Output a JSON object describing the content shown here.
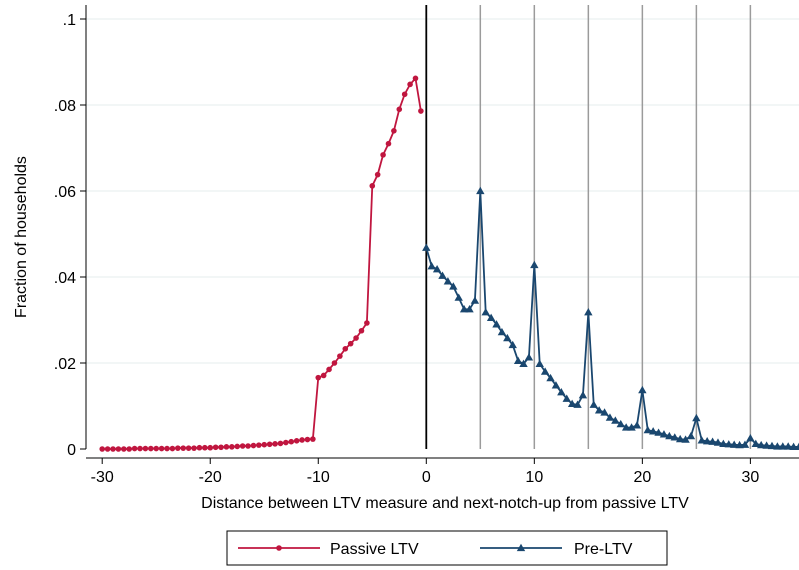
{
  "chart_data": {
    "type": "line",
    "title": "",
    "xlabel": "Distance between LTV measure and next-notch-up from passive LTV",
    "ylabel": "Fraction of households",
    "xlim": [
      -31.5,
      34.5
    ],
    "ylim": [
      0,
      0.1
    ],
    "x_ticks": [
      -30,
      -20,
      -10,
      0,
      10,
      20,
      30
    ],
    "x_tick_labels": [
      "-30",
      "-20",
      "-10",
      "0",
      "10",
      "20",
      "30"
    ],
    "y_ticks": [
      0,
      0.02,
      0.04,
      0.06,
      0.08,
      0.1
    ],
    "y_tick_labels": [
      "0",
      ".02",
      ".04",
      ".06",
      ".08",
      ".1"
    ],
    "grid": "horizontal",
    "vertical_lines": {
      "black": [
        0
      ],
      "gray": [
        5,
        10,
        15,
        20,
        25,
        30
      ]
    },
    "legend_position": "bottom",
    "series": [
      {
        "name": "Passive LTV",
        "color": "#c0163f",
        "marker": "circle",
        "x": [
          -30,
          -29.5,
          -29,
          -28.5,
          -28,
          -27.5,
          -27,
          -26.5,
          -26,
          -25.5,
          -25,
          -24.5,
          -24,
          -23.5,
          -23,
          -22.5,
          -22,
          -21.5,
          -21,
          -20.5,
          -20,
          -19.5,
          -19,
          -18.5,
          -18,
          -17.5,
          -17,
          -16.5,
          -16,
          -15.5,
          -15,
          -14.5,
          -14,
          -13.5,
          -13,
          -12.5,
          -12,
          -11.5,
          -11,
          -10.5,
          -10,
          -9.5,
          -9,
          -8.5,
          -8,
          -7.5,
          -7,
          -6.5,
          -6,
          -5.5,
          -5,
          -4.5,
          -4,
          -3.5,
          -3,
          -2.5,
          -2,
          -1.5,
          -1,
          -0.5
        ],
        "y": [
          0.0,
          0.0,
          0.0,
          0.0,
          0.0,
          0.0,
          0.0001,
          0.0001,
          0.0001,
          0.0001,
          0.0001,
          0.0001,
          0.0001,
          0.0001,
          0.0002,
          0.0002,
          0.0002,
          0.0002,
          0.0003,
          0.0003,
          0.0003,
          0.0004,
          0.0004,
          0.0005,
          0.0005,
          0.0006,
          0.0007,
          0.0007,
          0.0008,
          0.0009,
          0.001,
          0.0011,
          0.0012,
          0.0013,
          0.0015,
          0.0017,
          0.0019,
          0.0021,
          0.0022,
          0.0023,
          0.0166,
          0.0171,
          0.0185,
          0.02,
          0.0216,
          0.0233,
          0.0245,
          0.0258,
          0.0275,
          0.0293,
          0.0612,
          0.0638,
          0.0684,
          0.071,
          0.074,
          0.079,
          0.0825,
          0.0848,
          0.0862,
          0.0786
        ]
      },
      {
        "name": "Pre-LTV",
        "color": "#1a476f",
        "marker": "triangle",
        "x": [
          0,
          0.5,
          1,
          1.5,
          2,
          2.5,
          3,
          3.5,
          4,
          4.5,
          5,
          5.5,
          6,
          6.5,
          7,
          7.5,
          8,
          8.5,
          9,
          9.5,
          10,
          10.5,
          11,
          11.5,
          12,
          12.5,
          13,
          13.5,
          14,
          14.5,
          15,
          15.5,
          16,
          16.5,
          17,
          17.5,
          18,
          18.5,
          19,
          19.5,
          20,
          20.5,
          21,
          21.5,
          22,
          22.5,
          23,
          23.5,
          24,
          24.5,
          25,
          25.5,
          26,
          26.5,
          27,
          27.5,
          28,
          28.5,
          29,
          29.5,
          30,
          30.5,
          31,
          31.5,
          32,
          32.5,
          33,
          33.5,
          34,
          34.5
        ],
        "y": [
          0.0468,
          0.0425,
          0.0418,
          0.0403,
          0.039,
          0.0378,
          0.0352,
          0.0325,
          0.0325,
          0.0345,
          0.06,
          0.0318,
          0.0305,
          0.029,
          0.0272,
          0.0258,
          0.0242,
          0.0205,
          0.0198,
          0.0213,
          0.0428,
          0.0198,
          0.018,
          0.0165,
          0.0148,
          0.0132,
          0.0117,
          0.0105,
          0.0103,
          0.0125,
          0.0318,
          0.0103,
          0.009,
          0.0085,
          0.0073,
          0.0066,
          0.0058,
          0.005,
          0.005,
          0.0055,
          0.0137,
          0.0044,
          0.0041,
          0.0038,
          0.0034,
          0.003,
          0.0027,
          0.0023,
          0.0022,
          0.003,
          0.0072,
          0.002,
          0.0018,
          0.0017,
          0.0015,
          0.0012,
          0.0011,
          0.001,
          0.0009,
          0.001,
          0.0025,
          0.0012,
          0.0009,
          0.0008,
          0.0007,
          0.0006,
          0.0006,
          0.0006,
          0.0005,
          0.0005
        ]
      }
    ]
  }
}
